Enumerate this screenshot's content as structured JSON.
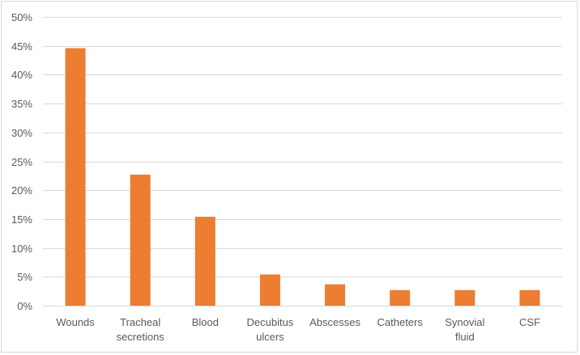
{
  "chart_data": {
    "type": "bar",
    "categories": [
      [
        "Wounds"
      ],
      [
        "Tracheal",
        "secretions"
      ],
      [
        "Blood"
      ],
      [
        "Decubitus",
        "ulcers"
      ],
      [
        "Abscesses"
      ],
      [
        "Catheters"
      ],
      [
        "Synovial",
        "fluid"
      ],
      [
        "CSF"
      ]
    ],
    "values": [
      44.6,
      22.7,
      15.4,
      5.4,
      3.7,
      2.7,
      2.7,
      2.7
    ],
    "ylim": [
      0,
      50
    ],
    "yticks": [
      0,
      5,
      10,
      15,
      20,
      25,
      30,
      35,
      40,
      45,
      50
    ],
    "ytick_labels": [
      "0%",
      "5%",
      "10%",
      "15%",
      "20%",
      "25%",
      "30%",
      "35%",
      "40%",
      "45%",
      "50%"
    ],
    "grid": true,
    "legend": "none",
    "title": "",
    "xlabel": "",
    "ylabel": "",
    "bar_color": "#ED7D31",
    "grid_color": "#d9d9d9"
  }
}
